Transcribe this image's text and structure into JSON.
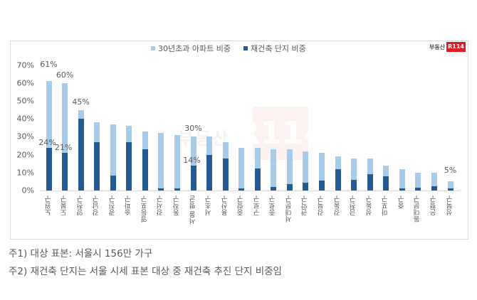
{
  "chart_data": {
    "type": "bar",
    "title": "",
    "xlabel": "",
    "ylabel": "",
    "ylim": [
      0,
      70
    ],
    "yticks": [
      "0%",
      "10%",
      "20%",
      "30%",
      "40%",
      "50%",
      "60%",
      "70%"
    ],
    "legend_position": "top",
    "grid": false,
    "overlap": true,
    "categories": [
      "노원구",
      "도봉구",
      "양천구",
      "강남구",
      "광진구",
      "송파구",
      "영등포구",
      "강서구",
      "동작구",
      "서울 평균",
      "서초구",
      "용산구",
      "중랑구",
      "구로구",
      "종로구",
      "서대문구",
      "관악구",
      "강북구",
      "강동구",
      "금천구",
      "성동구",
      "마포구",
      "중구",
      "동대문구",
      "은평구",
      "성북구"
    ],
    "series": [
      {
        "name": "30년초과 아파트 비중",
        "color": "#a9cbea",
        "values": [
          61,
          60,
          45,
          38,
          37,
          36,
          33,
          32,
          31,
          30,
          30,
          27,
          24,
          24,
          23,
          23,
          22,
          21,
          19,
          18,
          18,
          14,
          12,
          10,
          10,
          5
        ]
      },
      {
        "name": "재건축 단지 비중",
        "color": "#245b92",
        "values": [
          24,
          21,
          40,
          27,
          8.5,
          27,
          23,
          1,
          1,
          14,
          20,
          18,
          1,
          12.5,
          2,
          3.5,
          4.5,
          5.5,
          12,
          6,
          9,
          8,
          1,
          1.5,
          2.3,
          1
        ]
      }
    ],
    "data_labels": [
      {
        "category": "노원구",
        "series": 0,
        "text": "61%"
      },
      {
        "category": "노원구",
        "series": 1,
        "text": "24%"
      },
      {
        "category": "도봉구",
        "series": 0,
        "text": "60%"
      },
      {
        "category": "도봉구",
        "series": 1,
        "text": "21%"
      },
      {
        "category": "양천구",
        "series": 0,
        "text": "45%"
      },
      {
        "category": "서울 평균",
        "series": 0,
        "text": "30%"
      },
      {
        "category": "서울 평균",
        "series": 1,
        "text": "14%"
      },
      {
        "category": "성북구",
        "series": 0,
        "text": "5%"
      }
    ]
  },
  "legend": {
    "items": [
      {
        "label": "30년초과 아파트 비중",
        "color": "#a9cbea"
      },
      {
        "label": "재건축 단지 비중",
        "color": "#245b92"
      }
    ]
  },
  "logo": {
    "text": "부동산",
    "badge": "R114",
    "badge_color": "#e31b23"
  },
  "watermark": {
    "text": "부동산",
    "badge": "R114"
  },
  "notes": [
    "주1) 대상 표본: 서울시 156만 가구",
    "주2) 재건축 단지는 서울 시세 표본 대상 중 재건축 추진 단지 비중임"
  ]
}
